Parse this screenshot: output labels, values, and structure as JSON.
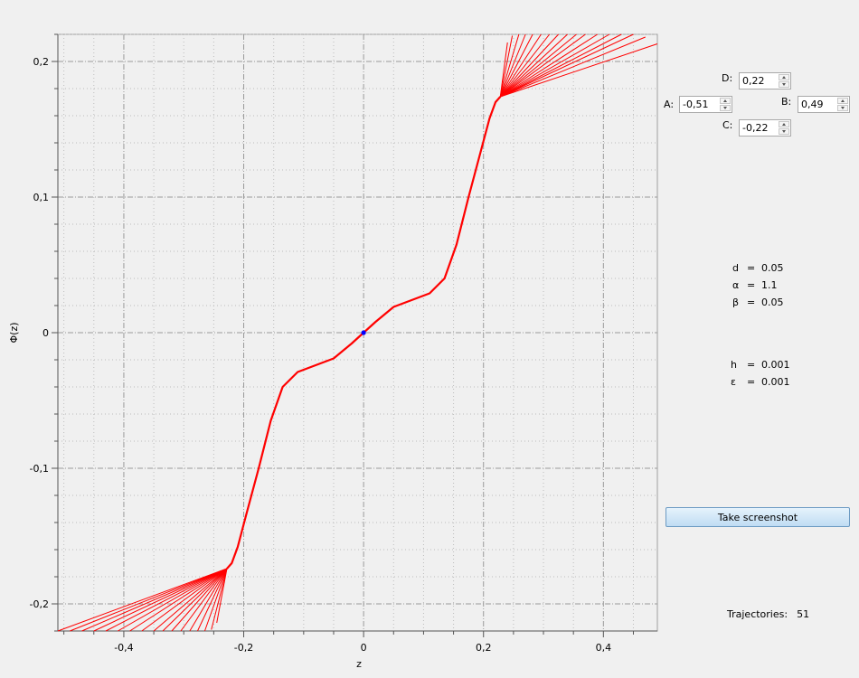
{
  "chart_data": {
    "type": "line",
    "xlabel": "z",
    "ylabel": "Φ(z)",
    "xlim": [
      -0.51,
      0.49
    ],
    "ylim": [
      -0.22,
      0.22
    ],
    "x_ticks": [
      {
        "value": -0.4,
        "label": "-0,4"
      },
      {
        "value": -0.2,
        "label": "-0,2"
      },
      {
        "value": 0,
        "label": "0"
      },
      {
        "value": 0.2,
        "label": "0,2"
      },
      {
        "value": 0.4,
        "label": "0,4"
      }
    ],
    "y_ticks": [
      {
        "value": 0.2,
        "label": "0,2"
      },
      {
        "value": 0.1,
        "label": "0,1"
      },
      {
        "value": 0,
        "label": "0"
      },
      {
        "value": -0.1,
        "label": "-0,1"
      },
      {
        "value": -0.2,
        "label": "-0,2"
      }
    ],
    "grid": true,
    "origin_point": {
      "x": 0,
      "y": 0,
      "color": "#0000ff"
    },
    "trajectory_color": "#ff0000",
    "main_curve": [
      [
        -0.228,
        -0.174
      ],
      [
        -0.22,
        -0.17
      ],
      [
        -0.21,
        -0.158
      ],
      [
        -0.195,
        -0.133
      ],
      [
        -0.175,
        -0.1
      ],
      [
        -0.155,
        -0.065
      ],
      [
        -0.135,
        -0.04
      ],
      [
        -0.11,
        -0.029
      ],
      [
        -0.08,
        -0.024
      ],
      [
        -0.05,
        -0.019
      ],
      [
        -0.02,
        -0.008
      ],
      [
        0,
        0
      ],
      [
        0.02,
        0.008
      ],
      [
        0.05,
        0.019
      ],
      [
        0.08,
        0.024
      ],
      [
        0.11,
        0.029
      ],
      [
        0.135,
        0.04
      ],
      [
        0.155,
        0.065
      ],
      [
        0.175,
        0.1
      ],
      [
        0.195,
        0.133
      ],
      [
        0.21,
        0.158
      ],
      [
        0.22,
        0.17
      ],
      [
        0.228,
        0.174
      ]
    ],
    "fan_upper": {
      "origin": [
        0.228,
        0.174
      ],
      "ends": [
        [
          0.49,
          0.213
        ],
        [
          0.47,
          0.218
        ],
        [
          0.45,
          0.22
        ],
        [
          0.43,
          0.22
        ],
        [
          0.41,
          0.22
        ],
        [
          0.39,
          0.22
        ],
        [
          0.37,
          0.22
        ],
        [
          0.355,
          0.22
        ],
        [
          0.34,
          0.22
        ],
        [
          0.325,
          0.22
        ],
        [
          0.31,
          0.22
        ],
        [
          0.296,
          0.22
        ],
        [
          0.282,
          0.22
        ],
        [
          0.27,
          0.22
        ],
        [
          0.259,
          0.22
        ],
        [
          0.248,
          0.219
        ],
        [
          0.24,
          0.214
        ]
      ]
    },
    "fan_lower": {
      "origin": [
        -0.228,
        -0.174
      ],
      "ends": [
        [
          -0.51,
          -0.22
        ],
        [
          -0.49,
          -0.22
        ],
        [
          -0.47,
          -0.22
        ],
        [
          -0.45,
          -0.22
        ],
        [
          -0.43,
          -0.22
        ],
        [
          -0.41,
          -0.22
        ],
        [
          -0.39,
          -0.22
        ],
        [
          -0.37,
          -0.22
        ],
        [
          -0.35,
          -0.22
        ],
        [
          -0.335,
          -0.22
        ],
        [
          -0.32,
          -0.22
        ],
        [
          -0.305,
          -0.22
        ],
        [
          -0.29,
          -0.22
        ],
        [
          -0.277,
          -0.22
        ],
        [
          -0.265,
          -0.22
        ],
        [
          -0.254,
          -0.219
        ],
        [
          -0.245,
          -0.214
        ]
      ]
    }
  },
  "controls": {
    "A": {
      "label": "A:",
      "value": "-0,51"
    },
    "B": {
      "label": "B:",
      "value": "0,49"
    },
    "C": {
      "label": "C:",
      "value": "-0,22"
    },
    "D": {
      "label": "D:",
      "value": "0,22"
    }
  },
  "params1": [
    {
      "name": "d",
      "eq": "=",
      "value": "0.05"
    },
    {
      "name": "α",
      "eq": "=",
      "value": "1.1"
    },
    {
      "name": "β",
      "eq": "=",
      "value": "0.05"
    }
  ],
  "params2": [
    {
      "name": "h",
      "eq": "=",
      "value": "0.001"
    },
    {
      "name": "ε",
      "eq": "=",
      "value": "0.001"
    }
  ],
  "screenshot_button": {
    "label": "Take screenshot"
  },
  "trajectories": {
    "label": "Trajectories:",
    "count": "51"
  }
}
